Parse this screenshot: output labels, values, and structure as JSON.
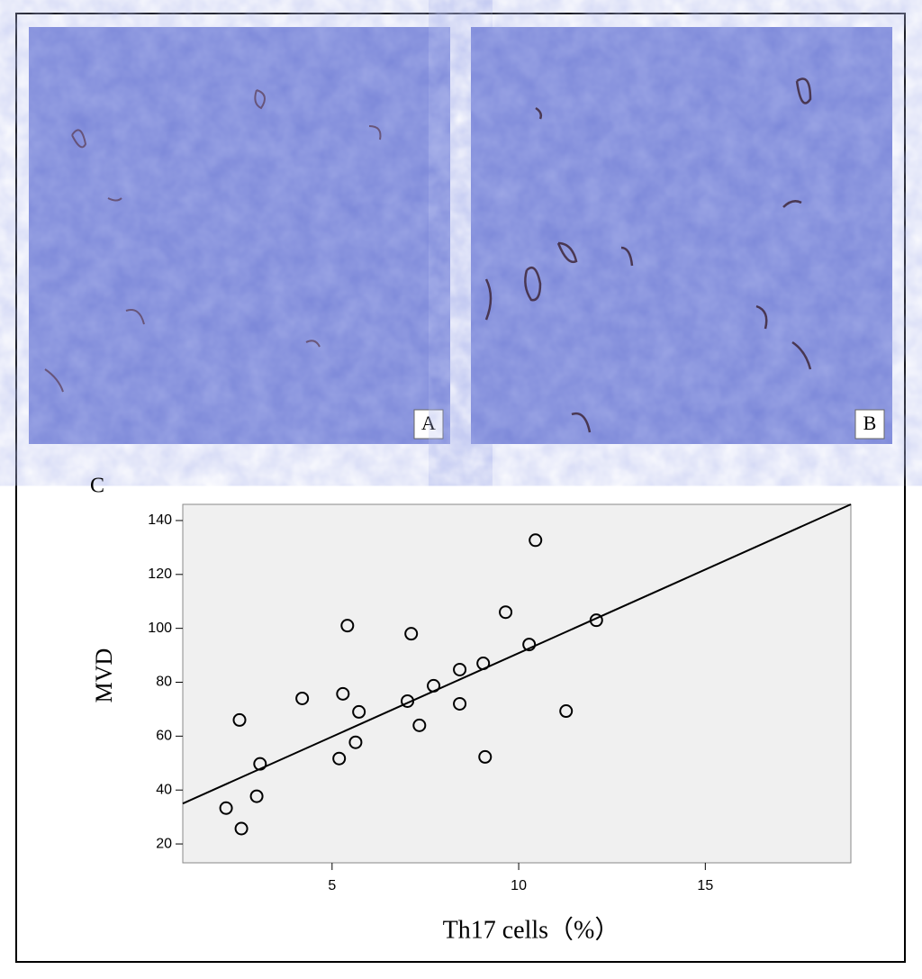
{
  "panel_labels": [
    "A",
    "B",
    "C"
  ],
  "chart_data": {
    "type": "scatter",
    "x_label": "Th17 cells（%）",
    "y_label": "MVD",
    "x": [
      2.16,
      2.57,
      2.52,
      2.98,
      3.07,
      4.2,
      5.19,
      5.29,
      5.41,
      5.63,
      5.72,
      7.12,
      7.02,
      7.34,
      7.72,
      8.42,
      8.42,
      9.05,
      9.1,
      9.65,
      10.28,
      10.45,
      11.27,
      12.08
    ],
    "values": [
      33.3,
      25.7,
      66,
      37.7,
      49.7,
      74,
      51.7,
      75.7,
      101,
      57.7,
      69,
      98,
      73,
      64,
      78.7,
      84.7,
      72,
      87,
      52.3,
      106,
      94,
      132.7,
      69.3,
      103
    ],
    "fit": {
      "x": [
        1,
        18.9
      ],
      "y": [
        35,
        146
      ]
    },
    "xlim": [
      1,
      18.9
    ],
    "ylim": [
      13,
      146
    ],
    "xticks": [
      5,
      10,
      15
    ],
    "yticks": [
      20,
      40,
      60,
      80,
      100,
      120,
      140
    ],
    "color": "#000000",
    "background": "#f0f0f0"
  }
}
